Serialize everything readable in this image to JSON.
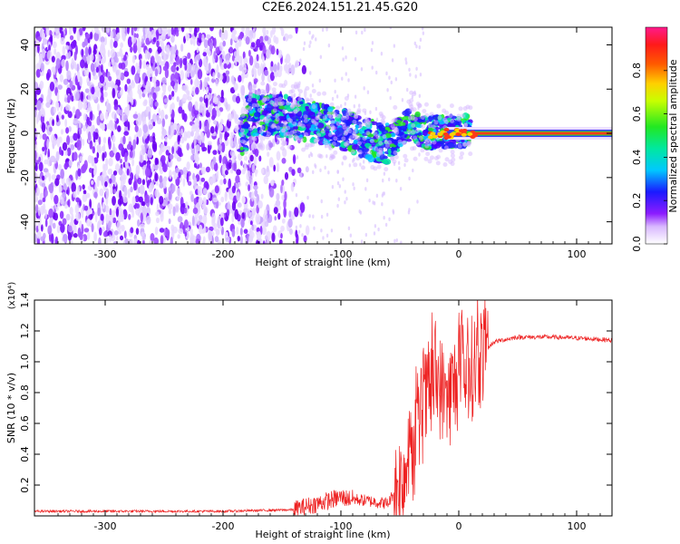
{
  "figure": {
    "title": "C2E6.2024.151.21.45.G20"
  },
  "chart_data": [
    {
      "type": "heatmap",
      "xlabel": "Height of straight line (km)",
      "ylabel": "Frequency (Hz)",
      "xlim": [
        -360,
        130
      ],
      "ylim": [
        -50,
        48
      ],
      "x_ticks": [
        -300,
        -200,
        -100,
        0,
        100
      ],
      "y_ticks": [
        -40,
        -20,
        0,
        20,
        40
      ],
      "colorbar": {
        "label": "Normalized spectral amplitude",
        "range": [
          0.0,
          1.0
        ],
        "ticks": [
          0.0,
          0.2,
          0.4,
          0.6,
          0.8
        ],
        "colormap": "rainbow (white-violet-blue-cyan-green-yellow-red-magenta)"
      },
      "features": {
        "noise_region_x": [
          -360,
          -135
        ],
        "signal_ridge": [
          {
            "x": -180,
            "y": 8
          },
          {
            "x": -150,
            "y": 8
          },
          {
            "x": -120,
            "y": 5
          },
          {
            "x": -100,
            "y": 2
          },
          {
            "x": -80,
            "y": -2
          },
          {
            "x": -60,
            "y": -5
          },
          {
            "x": -40,
            "y": 5
          },
          {
            "x": -30,
            "y": 0
          },
          {
            "x": 0,
            "y": 1
          },
          {
            "x": 130,
            "y": 0
          }
        ],
        "stable_carrier_x": [
          10,
          130
        ],
        "stable_carrier_y": 0,
        "grid": false
      }
    },
    {
      "type": "line",
      "xlabel": "Height of straight line (km)",
      "ylabel": "SNR (10 * v/v)",
      "y_multiplier": "(x10⁴)",
      "xlim": [
        -360,
        130
      ],
      "ylim": [
        0,
        1.4
      ],
      "x_ticks": [
        -300,
        -200,
        -100,
        0,
        100
      ],
      "y_ticks": [
        0.2,
        0.4,
        0.6,
        0.8,
        1.0,
        1.2,
        1.4
      ],
      "color": "#ee2222",
      "grid": false,
      "series": [
        {
          "x": [
            -360,
            -300,
            -200,
            -140,
            -120,
            -100,
            -80,
            -60,
            -50,
            -40,
            -30,
            -20,
            -10,
            0,
            10,
            20,
            30,
            50,
            80,
            110,
            130
          ],
          "y": [
            0.03,
            0.03,
            0.03,
            0.04,
            0.08,
            0.12,
            0.1,
            0.08,
            0.22,
            0.4,
            0.7,
            0.9,
            0.75,
            0.9,
            0.95,
            1.05,
            1.13,
            1.16,
            1.16,
            1.15,
            1.14
          ]
        }
      ]
    }
  ]
}
